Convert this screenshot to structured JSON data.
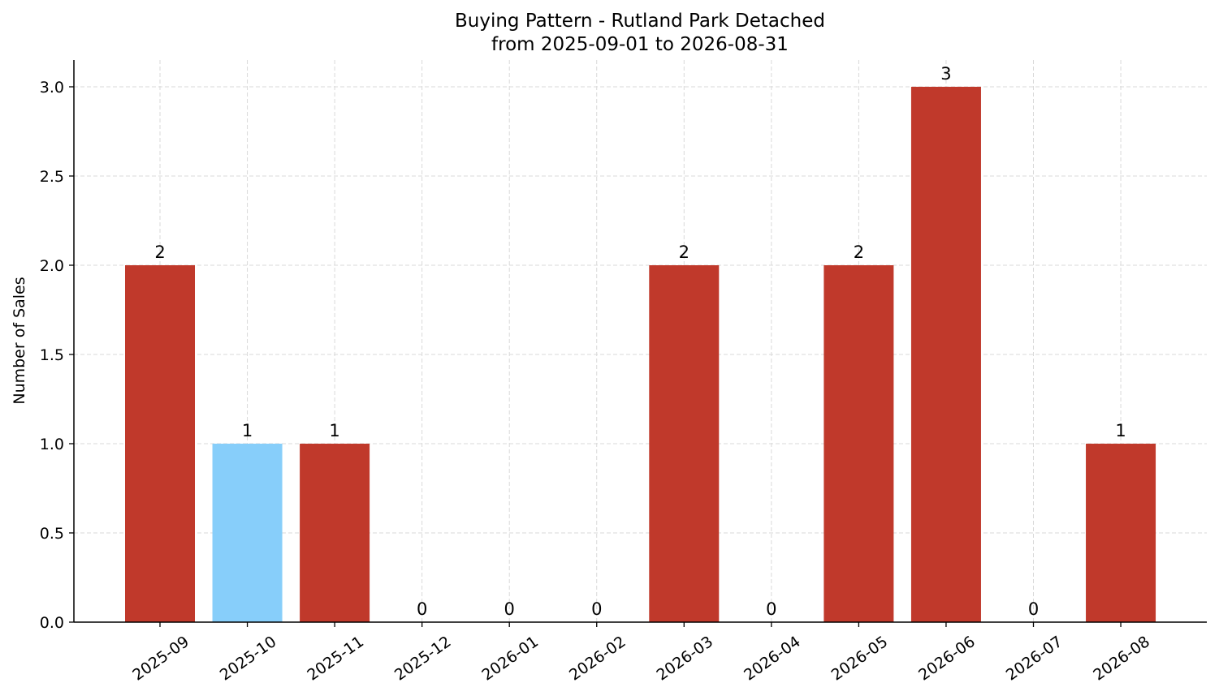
{
  "chart_data": {
    "type": "bar",
    "title": "Buying Pattern - Rutland Park Detached",
    "subtitle": "from 2025-09-01 to 2026-08-31",
    "xlabel": "",
    "ylabel": "Number of Sales",
    "categories": [
      "2025-09",
      "2025-10",
      "2025-11",
      "2025-12",
      "2026-01",
      "2026-02",
      "2026-03",
      "2026-04",
      "2026-05",
      "2026-06",
      "2026-07",
      "2026-08"
    ],
    "values": [
      2,
      1,
      1,
      0,
      0,
      0,
      2,
      0,
      2,
      3,
      0,
      1
    ],
    "data_labels": [
      "2",
      "1",
      "1",
      "0",
      "0",
      "0",
      "2",
      "0",
      "2",
      "3",
      "0",
      "1"
    ],
    "yticks": [
      "0.0",
      "0.5",
      "1.0",
      "1.5",
      "2.0",
      "2.5",
      "3.0"
    ],
    "ylim": [
      0,
      3.15
    ],
    "grid": true,
    "colors": {
      "default_bar": "#c0392b",
      "highlight_bar": "#87cefa",
      "grid": "#d9d9d9",
      "axis": "#000000"
    },
    "highlight_index": 1,
    "legend": "none"
  }
}
